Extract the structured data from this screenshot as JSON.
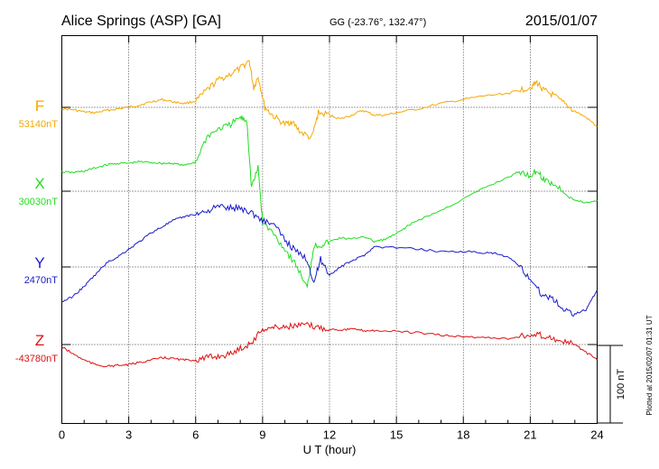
{
  "header": {
    "station": "Alice Springs (ASP)  [GA]",
    "coords": "GG (-23.76°, 132.47°)",
    "date": "2015/01/07"
  },
  "footer": {
    "plotted": "Plotted at 2015/02/07 01:31  UT"
  },
  "chart_data": {
    "type": "line",
    "xlabel": "U T (hour)",
    "xlim": [
      0,
      24
    ],
    "xticks": [
      0,
      3,
      6,
      9,
      12,
      15,
      18,
      21,
      24
    ],
    "scale_bar": {
      "label": "100 nT",
      "value_nT": 100
    },
    "grid": true,
    "series": [
      {
        "name": "F",
        "baseline_label": "53140nT",
        "baseline_nT": 53140,
        "color": "#f5a800",
        "points": [
          [
            0,
            53138
          ],
          [
            0.5,
            53137
          ],
          [
            1,
            53134
          ],
          [
            1.5,
            53133
          ],
          [
            2,
            53136
          ],
          [
            2.5,
            53138
          ],
          [
            3,
            53140
          ],
          [
            3.5,
            53143
          ],
          [
            4,
            53147
          ],
          [
            4.5,
            53150
          ],
          [
            5,
            53147
          ],
          [
            5.5,
            53145
          ],
          [
            6,
            53148
          ],
          [
            6.5,
            53162
          ],
          [
            7,
            53175
          ],
          [
            7.5,
            53182
          ],
          [
            8,
            53190
          ],
          [
            8.4,
            53200
          ],
          [
            8.6,
            53165
          ],
          [
            8.8,
            53180
          ],
          [
            9.1,
            53140
          ],
          [
            9.5,
            53128
          ],
          [
            10,
            53118
          ],
          [
            10.3,
            53122
          ],
          [
            10.7,
            53108
          ],
          [
            11.2,
            53100
          ],
          [
            11.5,
            53133
          ],
          [
            12,
            53130
          ],
          [
            12.5,
            53125
          ],
          [
            13,
            53130
          ],
          [
            13.5,
            53136
          ],
          [
            14,
            53130
          ],
          [
            14.5,
            53130
          ],
          [
            15,
            53133
          ],
          [
            16,
            53138
          ],
          [
            17,
            53145
          ],
          [
            18,
            53150
          ],
          [
            19,
            53155
          ],
          [
            20,
            53158
          ],
          [
            20.5,
            53162
          ],
          [
            21,
            53166
          ],
          [
            21.3,
            53172
          ],
          [
            21.6,
            53162
          ],
          [
            22,
            53156
          ],
          [
            22.5,
            53145
          ],
          [
            23,
            53135
          ],
          [
            23.5,
            53127
          ],
          [
            24,
            53115
          ]
        ]
      },
      {
        "name": "X",
        "baseline_label": "30030nT",
        "baseline_nT": 30030,
        "color": "#22dd22",
        "points": [
          [
            0,
            30055
          ],
          [
            0.5,
            30054
          ],
          [
            1,
            30056
          ],
          [
            1.5,
            30060
          ],
          [
            2,
            30064
          ],
          [
            2.5,
            30066
          ],
          [
            3,
            30066
          ],
          [
            3.5,
            30068
          ],
          [
            4,
            30067
          ],
          [
            4.5,
            30066
          ],
          [
            5,
            30066
          ],
          [
            5.5,
            30063
          ],
          [
            6,
            30068
          ],
          [
            6.5,
            30100
          ],
          [
            7,
            30110
          ],
          [
            7.5,
            30115
          ],
          [
            8,
            30125
          ],
          [
            8.3,
            30120
          ],
          [
            8.5,
            30035
          ],
          [
            8.8,
            30060
          ],
          [
            9,
            29990
          ],
          [
            9.5,
            29975
          ],
          [
            10,
            29955
          ],
          [
            10.5,
            29935
          ],
          [
            11,
            29905
          ],
          [
            11.3,
            29960
          ],
          [
            11.6,
            29960
          ],
          [
            12,
            29965
          ],
          [
            12.5,
            29970
          ],
          [
            13,
            29968
          ],
          [
            13.5,
            29972
          ],
          [
            14,
            29965
          ],
          [
            14.5,
            29968
          ],
          [
            15,
            29975
          ],
          [
            15.5,
            29985
          ],
          [
            16,
            29993
          ],
          [
            17,
            30005
          ],
          [
            18,
            30020
          ],
          [
            19,
            30035
          ],
          [
            20,
            30048
          ],
          [
            20.5,
            30055
          ],
          [
            21,
            30050
          ],
          [
            21.3,
            30057
          ],
          [
            21.6,
            30045
          ],
          [
            22,
            30040
          ],
          [
            22.5,
            30030
          ],
          [
            23,
            30018
          ],
          [
            23.5,
            30015
          ],
          [
            24,
            30018
          ]
        ]
      },
      {
        "name": "Y",
        "baseline_label": "2470nT",
        "baseline_nT": 2470,
        "color": "#1a1acc",
        "points": [
          [
            0,
            2425
          ],
          [
            0.5,
            2432
          ],
          [
            1,
            2445
          ],
          [
            1.5,
            2460
          ],
          [
            2,
            2475
          ],
          [
            2.5,
            2483
          ],
          [
            3,
            2493
          ],
          [
            3.5,
            2503
          ],
          [
            4,
            2514
          ],
          [
            4.5,
            2522
          ],
          [
            5,
            2530
          ],
          [
            5.5,
            2535
          ],
          [
            6,
            2538
          ],
          [
            6.5,
            2542
          ],
          [
            7,
            2548
          ],
          [
            7.5,
            2546
          ],
          [
            8,
            2546
          ],
          [
            8.5,
            2540
          ],
          [
            9,
            2530
          ],
          [
            9.5,
            2525
          ],
          [
            10,
            2505
          ],
          [
            10.5,
            2490
          ],
          [
            11,
            2480
          ],
          [
            11.3,
            2450
          ],
          [
            11.6,
            2480
          ],
          [
            12,
            2460
          ],
          [
            12.5,
            2470
          ],
          [
            13,
            2478
          ],
          [
            13.5,
            2484
          ],
          [
            14,
            2496
          ],
          [
            15,
            2495
          ],
          [
            16,
            2493
          ],
          [
            17,
            2490
          ],
          [
            18,
            2490
          ],
          [
            19,
            2488
          ],
          [
            19.5,
            2487
          ],
          [
            20,
            2482
          ],
          [
            20.5,
            2472
          ],
          [
            21,
            2455
          ],
          [
            21.5,
            2435
          ],
          [
            22,
            2430
          ],
          [
            22.5,
            2415
          ],
          [
            23,
            2410
          ],
          [
            23.5,
            2415
          ],
          [
            24,
            2440
          ]
        ]
      },
      {
        "name": "Z",
        "baseline_label": "-43780nT",
        "baseline_nT": -43780,
        "color": "#dd1111",
        "points": [
          [
            0,
            -43783
          ],
          [
            0.5,
            -43792
          ],
          [
            1,
            -43800
          ],
          [
            1.5,
            -43806
          ],
          [
            2,
            -43808
          ],
          [
            2.5,
            -43807
          ],
          [
            3,
            -43806
          ],
          [
            3.5,
            -43803
          ],
          [
            4,
            -43800
          ],
          [
            4.5,
            -43797
          ],
          [
            5,
            -43798
          ],
          [
            5.5,
            -43800
          ],
          [
            6,
            -43800
          ],
          [
            6.5,
            -43797
          ],
          [
            7,
            -43795
          ],
          [
            7.5,
            -43793
          ],
          [
            8,
            -43785
          ],
          [
            8.5,
            -43778
          ],
          [
            9,
            -43760
          ],
          [
            9.5,
            -43758
          ],
          [
            10,
            -43757
          ],
          [
            10.5,
            -43756
          ],
          [
            11,
            -43755
          ],
          [
            11.5,
            -43758
          ],
          [
            12,
            -43760
          ],
          [
            12.5,
            -43761
          ],
          [
            13,
            -43760
          ],
          [
            13.5,
            -43762
          ],
          [
            14,
            -43762
          ],
          [
            15,
            -43763
          ],
          [
            16,
            -43765
          ],
          [
            17,
            -43768
          ],
          [
            18,
            -43770
          ],
          [
            19,
            -43771
          ],
          [
            20,
            -43772
          ],
          [
            21,
            -43768
          ],
          [
            21.5,
            -43768
          ],
          [
            22,
            -43772
          ],
          [
            22.5,
            -43777
          ],
          [
            23,
            -43780
          ],
          [
            23.5,
            -43790
          ],
          [
            24,
            -43800
          ]
        ]
      }
    ]
  }
}
